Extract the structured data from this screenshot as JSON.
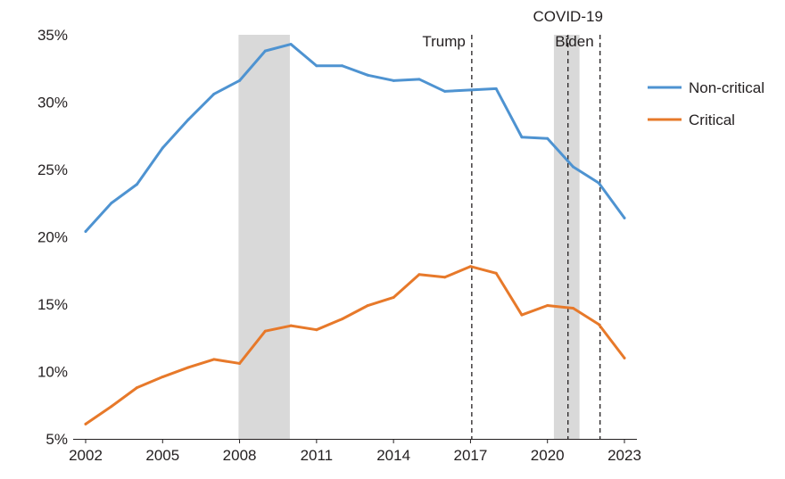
{
  "chart_data": {
    "type": "line",
    "title": "",
    "xlabel": "",
    "ylabel": "",
    "x": [
      2002,
      2003,
      2004,
      2005,
      2006,
      2007,
      2008,
      2009,
      2010,
      2011,
      2012,
      2013,
      2014,
      2015,
      2016,
      2017,
      2018,
      2019,
      2020,
      2021,
      2022,
      2023
    ],
    "xlim": [
      2002,
      2023
    ],
    "ylim": [
      5,
      35
    ],
    "grid": false,
    "legend_position": "right",
    "x_ticks": [
      {
        "value": 2002,
        "label": "2002"
      },
      {
        "value": 2005,
        "label": "2005"
      },
      {
        "value": 2008,
        "label": "2008"
      },
      {
        "value": 2011,
        "label": "2011"
      },
      {
        "value": 2014,
        "label": "2014"
      },
      {
        "value": 2017,
        "label": "2017"
      },
      {
        "value": 2020,
        "label": "2020"
      },
      {
        "value": 2023,
        "label": "2023"
      }
    ],
    "y_ticks": [
      {
        "value": 5,
        "label": "5%"
      },
      {
        "value": 10,
        "label": "10%"
      },
      {
        "value": 15,
        "label": "15%"
      },
      {
        "value": 20,
        "label": "20%"
      },
      {
        "value": 25,
        "label": "25%"
      },
      {
        "value": 30,
        "label": "30%"
      },
      {
        "value": 35,
        "label": "35%"
      }
    ],
    "series": [
      {
        "name": "Non-critical",
        "color": "#4e93d1",
        "values": [
          20.4,
          22.5,
          23.9,
          26.6,
          28.7,
          30.6,
          31.6,
          33.8,
          34.3,
          32.7,
          32.7,
          32.0,
          31.6,
          31.7,
          30.8,
          30.9,
          31.0,
          27.4,
          27.3,
          25.2,
          24.0,
          21.4
        ]
      },
      {
        "name": "Critical",
        "color": "#e7792a",
        "values": [
          6.1,
          7.4,
          8.8,
          9.6,
          10.3,
          10.9,
          10.6,
          13.0,
          13.4,
          13.1,
          13.9,
          14.9,
          15.5,
          17.2,
          17.0,
          17.8,
          17.3,
          14.2,
          14.9,
          14.7,
          13.5,
          11.0
        ]
      }
    ],
    "shaded_periods": [
      {
        "name": "recession-2008",
        "start": 2007.96,
        "end": 2009.96,
        "color": "#d9d9d9"
      },
      {
        "name": "covid-19",
        "start": 2020.25,
        "end": 2021.25,
        "color": "#d9d9d9"
      }
    ],
    "events": [
      {
        "name": "trump",
        "x": 2017.05,
        "label": "Trump"
      },
      {
        "name": "covid-19",
        "x": 2020.8,
        "label": "COVID-19"
      },
      {
        "name": "biden",
        "x": 2022.05,
        "label": "Biden"
      }
    ]
  }
}
